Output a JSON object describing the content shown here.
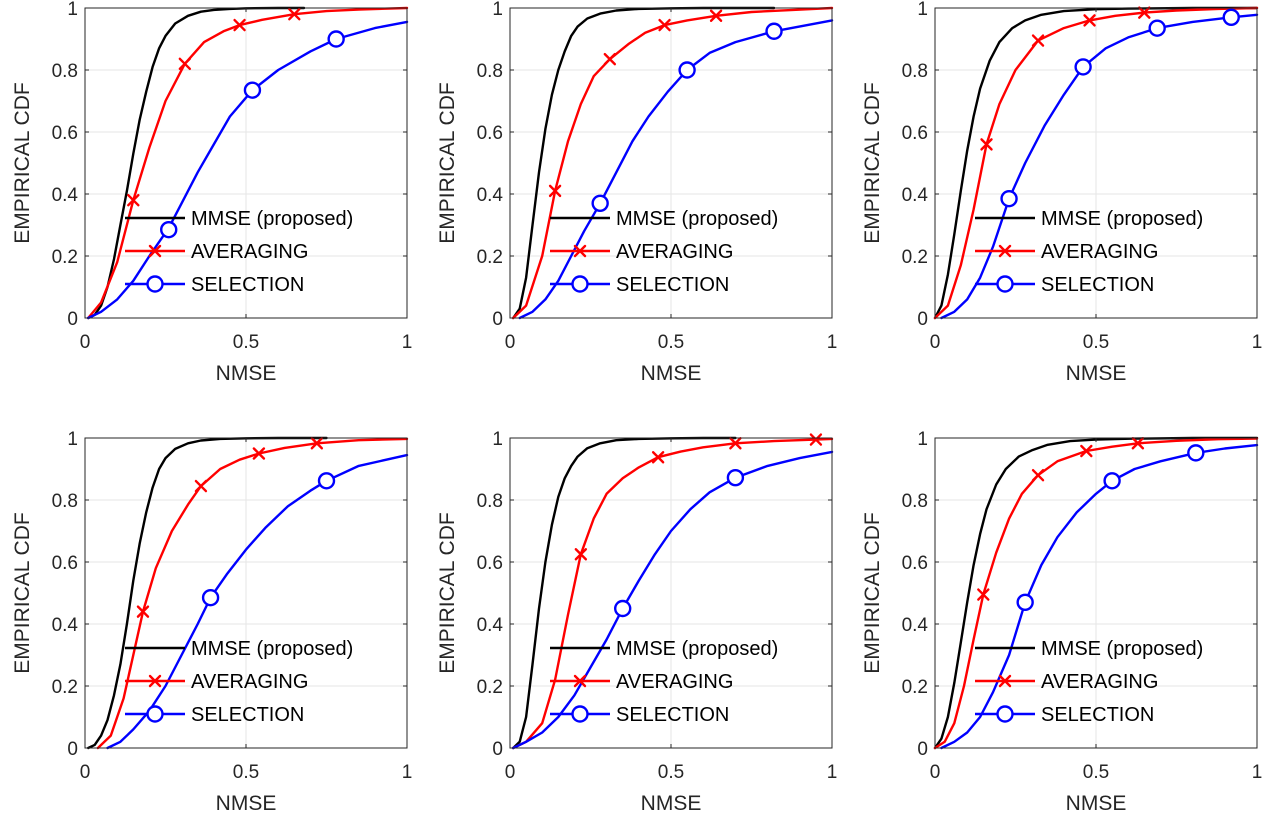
{
  "chart_data": [
    {
      "type": "line",
      "xlabel": "NMSE",
      "ylabel": "EMPIRICAL CDF",
      "xlim": [
        0,
        1
      ],
      "ylim": [
        0,
        1
      ],
      "xticks": [
        "0",
        "0.5",
        "1"
      ],
      "yticks": [
        "0",
        "0.2",
        "0.4",
        "0.6",
        "0.8",
        "1"
      ],
      "grid": true,
      "legend_position": "bottom-center",
      "series": [
        {
          "name": "MMSE (proposed)",
          "color": "#000000",
          "marker": "none",
          "x": [
            0.01,
            0.03,
            0.05,
            0.07,
            0.09,
            0.11,
            0.13,
            0.15,
            0.17,
            0.19,
            0.21,
            0.23,
            0.25,
            0.28,
            0.32,
            0.36,
            0.4,
            0.45,
            0.5,
            0.6,
            0.68
          ],
          "y": [
            0.0,
            0.01,
            0.04,
            0.1,
            0.19,
            0.3,
            0.41,
            0.53,
            0.64,
            0.73,
            0.81,
            0.87,
            0.91,
            0.95,
            0.975,
            0.988,
            0.994,
            0.997,
            0.999,
            1.0,
            1.0
          ]
        },
        {
          "name": "AVERAGING",
          "color": "#ff0000",
          "marker": "x",
          "x": [
            0.01,
            0.05,
            0.1,
            0.15,
            0.2,
            0.25,
            0.31,
            0.37,
            0.43,
            0.48,
            0.55,
            0.65,
            0.75,
            0.85,
            1.0
          ],
          "y": [
            0.0,
            0.05,
            0.18,
            0.38,
            0.55,
            0.7,
            0.82,
            0.89,
            0.925,
            0.945,
            0.962,
            0.98,
            0.99,
            0.995,
            1.0
          ],
          "markers": [
            [
              0.15,
              0.38
            ],
            [
              0.31,
              0.82
            ],
            [
              0.48,
              0.945
            ],
            [
              0.65,
              0.98
            ]
          ]
        },
        {
          "name": "SELECTION",
          "color": "#0000ff",
          "marker": "o",
          "x": [
            0.01,
            0.05,
            0.1,
            0.15,
            0.2,
            0.26,
            0.3,
            0.35,
            0.4,
            0.45,
            0.52,
            0.6,
            0.7,
            0.78,
            0.9,
            1.0
          ],
          "y": [
            0.0,
            0.02,
            0.06,
            0.12,
            0.2,
            0.29,
            0.37,
            0.47,
            0.56,
            0.65,
            0.735,
            0.8,
            0.86,
            0.9,
            0.935,
            0.955
          ],
          "markers": [
            [
              0.26,
              0.285
            ],
            [
              0.52,
              0.735
            ],
            [
              0.78,
              0.9
            ]
          ]
        }
      ]
    },
    {
      "type": "line",
      "xlabel": "NMSE",
      "ylabel": "EMPIRICAL CDF",
      "xlim": [
        0,
        1
      ],
      "ylim": [
        0,
        1
      ],
      "xticks": [
        "0",
        "0.5",
        "1"
      ],
      "yticks": [
        "0",
        "0.2",
        "0.4",
        "0.6",
        "0.8",
        "1"
      ],
      "grid": true,
      "legend_position": "bottom-center",
      "series": [
        {
          "name": "MMSE (proposed)",
          "color": "#000000",
          "marker": "none",
          "x": [
            0.01,
            0.03,
            0.05,
            0.07,
            0.09,
            0.11,
            0.13,
            0.15,
            0.17,
            0.19,
            0.21,
            0.24,
            0.28,
            0.33,
            0.4,
            0.5,
            0.6,
            0.82
          ],
          "y": [
            0.0,
            0.03,
            0.13,
            0.3,
            0.47,
            0.61,
            0.72,
            0.8,
            0.86,
            0.91,
            0.94,
            0.966,
            0.982,
            0.992,
            0.997,
            0.999,
            1.0,
            1.0
          ]
        },
        {
          "name": "AVERAGING",
          "color": "#ff0000",
          "marker": "x",
          "x": [
            0.01,
            0.05,
            0.1,
            0.14,
            0.18,
            0.22,
            0.26,
            0.31,
            0.37,
            0.42,
            0.48,
            0.55,
            0.64,
            0.75,
            0.88,
            1.0
          ],
          "y": [
            0.0,
            0.04,
            0.2,
            0.41,
            0.57,
            0.69,
            0.78,
            0.835,
            0.885,
            0.92,
            0.945,
            0.96,
            0.975,
            0.987,
            0.994,
            1.0
          ],
          "markers": [
            [
              0.14,
              0.41
            ],
            [
              0.31,
              0.835
            ],
            [
              0.48,
              0.945
            ],
            [
              0.64,
              0.975
            ]
          ]
        },
        {
          "name": "SELECTION",
          "color": "#0000ff",
          "marker": "o",
          "x": [
            0.03,
            0.07,
            0.11,
            0.15,
            0.19,
            0.23,
            0.28,
            0.33,
            0.38,
            0.43,
            0.49,
            0.55,
            0.62,
            0.7,
            0.82,
            1.0
          ],
          "y": [
            0.0,
            0.02,
            0.06,
            0.12,
            0.2,
            0.28,
            0.37,
            0.47,
            0.57,
            0.65,
            0.73,
            0.8,
            0.855,
            0.89,
            0.925,
            0.96
          ],
          "markers": [
            [
              0.28,
              0.37
            ],
            [
              0.55,
              0.8
            ],
            [
              0.82,
              0.925
            ]
          ]
        }
      ]
    },
    {
      "type": "line",
      "xlabel": "NMSE",
      "ylabel": "EMPIRICAL CDF",
      "xlim": [
        0,
        1
      ],
      "ylim": [
        0,
        1
      ],
      "xticks": [
        "0",
        "0.5",
        "1"
      ],
      "yticks": [
        "0",
        "0.2",
        "0.4",
        "0.6",
        "0.8",
        "1"
      ],
      "grid": true,
      "legend_position": "bottom-center",
      "series": [
        {
          "name": "MMSE (proposed)",
          "color": "#000000",
          "marker": "none",
          "x": [
            0.0,
            0.02,
            0.04,
            0.06,
            0.08,
            0.1,
            0.12,
            0.14,
            0.17,
            0.2,
            0.24,
            0.28,
            0.33,
            0.4,
            0.5,
            0.6,
            0.8,
            1.0
          ],
          "y": [
            0.0,
            0.04,
            0.14,
            0.27,
            0.41,
            0.54,
            0.65,
            0.74,
            0.83,
            0.89,
            0.935,
            0.96,
            0.978,
            0.99,
            0.996,
            0.998,
            1.0,
            1.0
          ]
        },
        {
          "name": "AVERAGING",
          "color": "#ff0000",
          "marker": "x",
          "x": [
            0.0,
            0.04,
            0.08,
            0.12,
            0.16,
            0.2,
            0.25,
            0.32,
            0.4,
            0.48,
            0.56,
            0.65,
            0.75,
            0.88,
            1.0
          ],
          "y": [
            0.0,
            0.04,
            0.17,
            0.35,
            0.56,
            0.69,
            0.8,
            0.895,
            0.935,
            0.96,
            0.975,
            0.985,
            0.992,
            0.997,
            1.0
          ],
          "markers": [
            [
              0.16,
              0.56
            ],
            [
              0.32,
              0.895
            ],
            [
              0.48,
              0.96
            ],
            [
              0.65,
              0.985
            ]
          ]
        },
        {
          "name": "SELECTION",
          "color": "#0000ff",
          "marker": "o",
          "x": [
            0.02,
            0.06,
            0.1,
            0.14,
            0.18,
            0.23,
            0.28,
            0.34,
            0.4,
            0.46,
            0.53,
            0.6,
            0.69,
            0.8,
            0.92,
            1.0
          ],
          "y": [
            0.0,
            0.02,
            0.06,
            0.13,
            0.23,
            0.385,
            0.5,
            0.62,
            0.72,
            0.81,
            0.87,
            0.905,
            0.935,
            0.955,
            0.97,
            0.978
          ],
          "markers": [
            [
              0.23,
              0.385
            ],
            [
              0.46,
              0.81
            ],
            [
              0.69,
              0.935
            ],
            [
              0.92,
              0.97
            ]
          ]
        }
      ]
    },
    {
      "type": "line",
      "xlabel": "NMSE",
      "ylabel": "EMPIRICAL CDF",
      "xlim": [
        0,
        1
      ],
      "ylim": [
        0,
        1
      ],
      "xticks": [
        "0",
        "0.5",
        "1"
      ],
      "yticks": [
        "0",
        "0.2",
        "0.4",
        "0.6",
        "0.8",
        "1"
      ],
      "grid": true,
      "legend_position": "bottom-center",
      "series": [
        {
          "name": "MMSE (proposed)",
          "color": "#000000",
          "marker": "none",
          "x": [
            0.01,
            0.03,
            0.05,
            0.07,
            0.09,
            0.11,
            0.13,
            0.15,
            0.17,
            0.19,
            0.21,
            0.23,
            0.25,
            0.28,
            0.32,
            0.36,
            0.42,
            0.5,
            0.6,
            0.75
          ],
          "y": [
            0.0,
            0.01,
            0.04,
            0.09,
            0.17,
            0.27,
            0.4,
            0.54,
            0.66,
            0.76,
            0.84,
            0.9,
            0.935,
            0.965,
            0.983,
            0.992,
            0.997,
            0.999,
            1.0,
            1.0
          ]
        },
        {
          "name": "AVERAGING",
          "color": "#ff0000",
          "marker": "x",
          "x": [
            0.04,
            0.08,
            0.12,
            0.15,
            0.18,
            0.22,
            0.27,
            0.32,
            0.36,
            0.42,
            0.48,
            0.54,
            0.62,
            0.72,
            0.85,
            1.0
          ],
          "y": [
            0.0,
            0.04,
            0.16,
            0.3,
            0.44,
            0.58,
            0.7,
            0.785,
            0.845,
            0.9,
            0.93,
            0.95,
            0.968,
            0.983,
            0.993,
            0.997
          ],
          "markers": [
            [
              0.18,
              0.44
            ],
            [
              0.36,
              0.845
            ],
            [
              0.54,
              0.95
            ],
            [
              0.72,
              0.983
            ]
          ]
        },
        {
          "name": "SELECTION",
          "color": "#0000ff",
          "marker": "o",
          "x": [
            0.07,
            0.11,
            0.15,
            0.2,
            0.25,
            0.3,
            0.35,
            0.39,
            0.44,
            0.5,
            0.56,
            0.63,
            0.7,
            0.75,
            0.85,
            1.0
          ],
          "y": [
            0.0,
            0.02,
            0.06,
            0.12,
            0.2,
            0.3,
            0.4,
            0.485,
            0.56,
            0.64,
            0.71,
            0.78,
            0.83,
            0.862,
            0.91,
            0.945
          ],
          "markers": [
            [
              0.39,
              0.485
            ],
            [
              0.75,
              0.862
            ]
          ]
        }
      ]
    },
    {
      "type": "line",
      "xlabel": "NMSE",
      "ylabel": "EMPIRICAL CDF",
      "xlim": [
        0,
        1
      ],
      "ylim": [
        0,
        1
      ],
      "xticks": [
        "0",
        "0.5",
        "1"
      ],
      "yticks": [
        "0",
        "0.2",
        "0.4",
        "0.6",
        "0.8",
        "1"
      ],
      "grid": true,
      "legend_position": "bottom-center",
      "series": [
        {
          "name": "MMSE (proposed)",
          "color": "#000000",
          "marker": "none",
          "x": [
            0.01,
            0.03,
            0.05,
            0.07,
            0.09,
            0.11,
            0.13,
            0.15,
            0.17,
            0.19,
            0.21,
            0.24,
            0.28,
            0.33,
            0.4,
            0.5,
            0.6,
            0.7
          ],
          "y": [
            0.0,
            0.02,
            0.1,
            0.27,
            0.45,
            0.6,
            0.72,
            0.81,
            0.87,
            0.91,
            0.94,
            0.967,
            0.983,
            0.993,
            0.997,
            0.999,
            1.0,
            1.0
          ]
        },
        {
          "name": "AVERAGING",
          "color": "#ff0000",
          "marker": "x",
          "x": [
            0.01,
            0.05,
            0.1,
            0.14,
            0.18,
            0.22,
            0.26,
            0.3,
            0.35,
            0.4,
            0.46,
            0.53,
            0.6,
            0.7,
            0.82,
            0.95,
            1.0
          ],
          "y": [
            0.0,
            0.02,
            0.08,
            0.22,
            0.43,
            0.625,
            0.74,
            0.82,
            0.87,
            0.905,
            0.938,
            0.956,
            0.97,
            0.983,
            0.99,
            0.995,
            0.997
          ],
          "markers": [
            [
              0.22,
              0.625
            ],
            [
              0.46,
              0.938
            ],
            [
              0.7,
              0.983
            ],
            [
              0.95,
              0.995
            ]
          ]
        },
        {
          "name": "SELECTION",
          "color": "#0000ff",
          "marker": "o",
          "x": [
            0.01,
            0.05,
            0.1,
            0.15,
            0.2,
            0.25,
            0.3,
            0.35,
            0.4,
            0.45,
            0.5,
            0.56,
            0.62,
            0.7,
            0.8,
            0.9,
            1.0
          ],
          "y": [
            0.0,
            0.02,
            0.05,
            0.1,
            0.17,
            0.26,
            0.35,
            0.45,
            0.54,
            0.625,
            0.7,
            0.77,
            0.825,
            0.872,
            0.91,
            0.935,
            0.955
          ],
          "markers": [
            [
              0.35,
              0.45
            ],
            [
              0.7,
              0.872
            ]
          ]
        }
      ]
    },
    {
      "type": "line",
      "xlabel": "NMSE",
      "ylabel": "EMPIRICAL CDF",
      "xlim": [
        0,
        1
      ],
      "ylim": [
        0,
        1
      ],
      "xticks": [
        "0",
        "0.5",
        "1"
      ],
      "yticks": [
        "0",
        "0.2",
        "0.4",
        "0.6",
        "0.8",
        "1"
      ],
      "grid": true,
      "legend_position": "bottom-center",
      "series": [
        {
          "name": "MMSE (proposed)",
          "color": "#000000",
          "marker": "none",
          "x": [
            0.0,
            0.02,
            0.04,
            0.06,
            0.08,
            0.1,
            0.12,
            0.14,
            0.16,
            0.19,
            0.22,
            0.26,
            0.3,
            0.35,
            0.42,
            0.5,
            0.62,
            0.8,
            1.0
          ],
          "y": [
            0.0,
            0.03,
            0.1,
            0.21,
            0.34,
            0.47,
            0.59,
            0.69,
            0.77,
            0.85,
            0.9,
            0.94,
            0.96,
            0.978,
            0.99,
            0.995,
            0.998,
            1.0,
            1.0
          ]
        },
        {
          "name": "AVERAGING",
          "color": "#ff0000",
          "marker": "x",
          "x": [
            0.0,
            0.03,
            0.06,
            0.09,
            0.12,
            0.15,
            0.19,
            0.23,
            0.27,
            0.32,
            0.38,
            0.47,
            0.55,
            0.63,
            0.75,
            0.88,
            1.0
          ],
          "y": [
            0.0,
            0.02,
            0.08,
            0.2,
            0.35,
            0.495,
            0.63,
            0.74,
            0.82,
            0.88,
            0.925,
            0.958,
            0.972,
            0.983,
            0.991,
            0.996,
            0.998
          ],
          "markers": [
            [
              0.15,
              0.495
            ],
            [
              0.32,
              0.88
            ],
            [
              0.47,
              0.958
            ],
            [
              0.63,
              0.983
            ]
          ]
        },
        {
          "name": "SELECTION",
          "color": "#0000ff",
          "marker": "o",
          "x": [
            0.02,
            0.06,
            0.1,
            0.14,
            0.18,
            0.23,
            0.28,
            0.33,
            0.38,
            0.44,
            0.5,
            0.55,
            0.62,
            0.7,
            0.81,
            0.9,
            1.0
          ],
          "y": [
            0.0,
            0.02,
            0.05,
            0.1,
            0.18,
            0.3,
            0.47,
            0.59,
            0.68,
            0.76,
            0.82,
            0.862,
            0.9,
            0.925,
            0.952,
            0.966,
            0.977
          ],
          "markers": [
            [
              0.28,
              0.47
            ],
            [
              0.55,
              0.862
            ],
            [
              0.81,
              0.952
            ]
          ]
        }
      ]
    }
  ]
}
